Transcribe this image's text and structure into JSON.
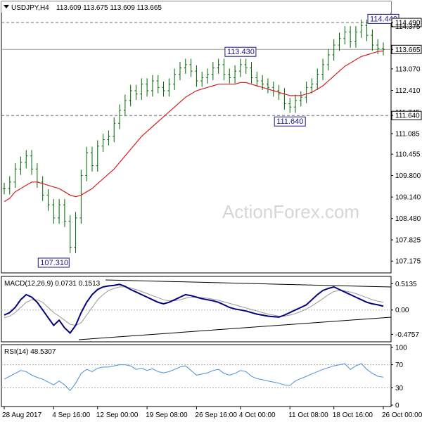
{
  "header": {
    "symbol_timeframe": "USDJPY,H4",
    "ohlc": "113.609 113.675 113.609 113.665"
  },
  "watermark": "ActionForex.com",
  "colors": {
    "price_bars": "#006400",
    "moving_average": "#d42020",
    "macd_line": "#000080",
    "macd_signal": "#999999",
    "rsi_line": "#4a90d9",
    "annotation_text": "#1a1a8c"
  },
  "chart_data": [
    {
      "type": "ohlc",
      "header": "USDJPY,H4 113.609 113.675 113.609 113.665",
      "ylim": [
        106.9,
        114.75
      ],
      "y_ticks": [
        "114.490",
        "114.375",
        "113.665",
        "113.070",
        "112.410",
        "111.745",
        "111.640",
        "111.085",
        "110.455",
        "109.800",
        "109.140",
        "108.480",
        "107.825",
        "107.175"
      ],
      "x_ticks": [
        "28 Aug 2017",
        "4 Sep 16:00",
        "12 Sep 00:00",
        "19 Sep 08:00",
        "26 Sep 16:00",
        "4 Oct 00:00",
        "11 Oct 08:00",
        "18 Oct 16:00",
        "26 Oct 00:00"
      ],
      "horizontal_levels": [
        114.49,
        113.665,
        111.64
      ],
      "annotations": [
        {
          "text": "114.440",
          "value": 114.44,
          "anchor": "26 Oct 00:00"
        },
        {
          "text": "113.430",
          "value": 113.43,
          "anchor": "4 Oct 00:00"
        },
        {
          "text": "111.640",
          "value": 111.64,
          "anchor": "11 Oct 08:00"
        },
        {
          "text": "107.310",
          "value": 107.31,
          "anchor": "4 Sep 16:00"
        }
      ],
      "close_series": [
        109.4,
        109.6,
        110.0,
        110.2,
        110.4,
        110.0,
        109.6,
        109.2,
        108.9,
        108.5,
        108.9,
        108.4,
        107.6,
        108.5,
        109.8,
        110.5,
        110.1,
        110.7,
        110.9,
        111.0,
        111.4,
        111.8,
        112.1,
        112.4,
        112.3,
        112.6,
        112.4,
        112.7,
        112.5,
        112.4,
        112.6,
        112.9,
        113.1,
        113.2,
        113.0,
        112.7,
        112.8,
        112.9,
        113.1,
        113.2,
        112.9,
        112.8,
        113.0,
        113.2,
        113.1,
        112.8,
        112.7,
        112.6,
        112.5,
        112.4,
        112.3,
        112.0,
        111.9,
        112.1,
        112.2,
        112.5,
        112.6,
        112.9,
        113.2,
        113.5,
        113.8,
        114.0,
        114.2,
        113.9,
        114.2,
        114.4,
        114.1,
        113.8,
        113.7,
        113.665
      ],
      "moving_average": [
        109.0,
        109.1,
        109.3,
        109.4,
        109.5,
        109.6,
        109.6,
        109.55,
        109.5,
        109.45,
        109.4,
        109.3,
        109.2,
        109.15,
        109.2,
        109.3,
        109.4,
        109.55,
        109.7,
        109.85,
        110.0,
        110.2,
        110.4,
        110.6,
        110.8,
        111.0,
        111.15,
        111.3,
        111.45,
        111.6,
        111.75,
        111.9,
        112.05,
        112.2,
        112.3,
        112.4,
        112.45,
        112.5,
        112.55,
        112.6,
        112.6,
        112.6,
        112.6,
        112.65,
        112.65,
        112.6,
        112.55,
        112.5,
        112.45,
        112.4,
        112.35,
        112.3,
        112.25,
        112.25,
        112.25,
        112.3,
        112.35,
        112.45,
        112.55,
        112.7,
        112.85,
        113.0,
        113.15,
        113.25,
        113.35,
        113.45,
        113.5,
        113.55,
        113.6,
        113.62
      ]
    },
    {
      "type": "line",
      "header": "MACD(12,26,9) 0.0731 0.1513",
      "ylim": [
        -0.58,
        0.6
      ],
      "y_ticks": [
        "0.5135",
        "0.00",
        "-0.4757"
      ],
      "series": [
        {
          "values": [
            -0.1,
            -0.05,
            0.05,
            0.2,
            0.3,
            0.25,
            0.15,
            0.0,
            -0.15,
            -0.3,
            -0.2,
            -0.35,
            -0.45,
            -0.3,
            -0.05,
            0.15,
            0.3,
            0.4,
            0.45,
            0.47,
            0.48,
            0.5,
            0.46,
            0.4,
            0.35,
            0.3,
            0.25,
            0.2,
            0.15,
            0.12,
            0.15,
            0.2,
            0.25,
            0.3,
            0.28,
            0.25,
            0.22,
            0.2,
            0.18,
            0.15,
            0.1,
            0.05,
            0.02,
            0.0,
            -0.02,
            -0.05,
            -0.08,
            -0.1,
            -0.12,
            -0.13,
            -0.14,
            -0.1,
            -0.05,
            0.0,
            0.05,
            0.1,
            0.2,
            0.3,
            0.38,
            0.42,
            0.45,
            0.4,
            0.35,
            0.3,
            0.25,
            0.2,
            0.15,
            0.12,
            0.1,
            0.0731
          ]
        },
        {
          "values": [
            -0.15,
            -0.12,
            -0.05,
            0.05,
            0.15,
            0.2,
            0.2,
            0.15,
            0.05,
            -0.05,
            -0.12,
            -0.2,
            -0.28,
            -0.3,
            -0.25,
            -0.1,
            0.05,
            0.2,
            0.3,
            0.38,
            0.42,
            0.45,
            0.45,
            0.43,
            0.4,
            0.36,
            0.32,
            0.28,
            0.24,
            0.2,
            0.18,
            0.18,
            0.2,
            0.23,
            0.25,
            0.25,
            0.24,
            0.23,
            0.21,
            0.19,
            0.16,
            0.13,
            0.1,
            0.07,
            0.04,
            0.01,
            -0.02,
            -0.05,
            -0.08,
            -0.1,
            -0.12,
            -0.12,
            -0.1,
            -0.07,
            -0.03,
            0.02,
            0.08,
            0.15,
            0.22,
            0.3,
            0.36,
            0.38,
            0.37,
            0.35,
            0.32,
            0.28,
            0.24,
            0.2,
            0.17,
            0.1513
          ]
        }
      ]
    },
    {
      "type": "line",
      "header": "RSI(14) 48.5307",
      "ylim": [
        0,
        100
      ],
      "y_ticks": [
        "100",
        "70",
        "30",
        "0"
      ],
      "levels": [
        70,
        30
      ],
      "series": [
        {
          "values": [
            45,
            50,
            55,
            60,
            58,
            52,
            48,
            45,
            40,
            35,
            42,
            35,
            25,
            38,
            55,
            62,
            58,
            64,
            66,
            66,
            68,
            70,
            70,
            68,
            62,
            64,
            60,
            63,
            58,
            56,
            58,
            62,
            66,
            68,
            60,
            52,
            54,
            56,
            60,
            62,
            55,
            52,
            55,
            60,
            58,
            50,
            46,
            44,
            42,
            40,
            38,
            35,
            34,
            42,
            46,
            50,
            54,
            58,
            62,
            65,
            68,
            70,
            72,
            62,
            68,
            72,
            62,
            55,
            50,
            48.5307
          ]
        }
      ]
    }
  ]
}
